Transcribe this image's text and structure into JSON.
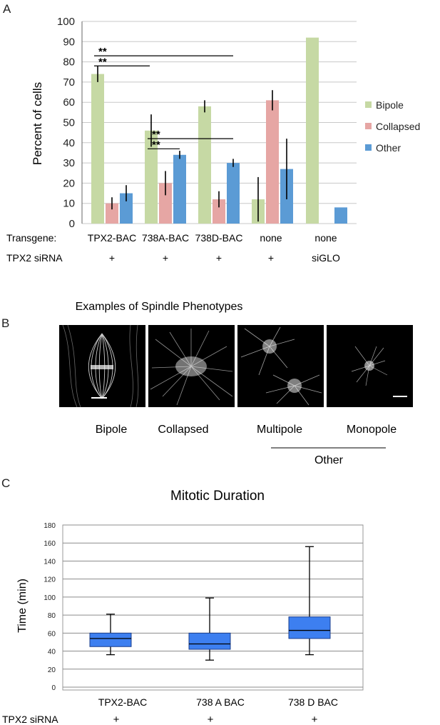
{
  "panels": {
    "a": "A",
    "b": "B",
    "c": "C"
  },
  "chart_data": [
    {
      "type": "bar",
      "title": "",
      "xlabel": "",
      "ylabel": "Percent of cells",
      "ylim": [
        0,
        100
      ],
      "yticks": [
        0,
        10,
        20,
        30,
        40,
        50,
        60,
        70,
        80,
        90,
        100
      ],
      "grid": true,
      "legend_position": "right",
      "categories": [
        "TPX2-BAC",
        "738A-BAC",
        "738D-BAC",
        "none",
        "none"
      ],
      "row_labels": {
        "transgene": "Transgene:",
        "sirna": "TPX2 siRNA"
      },
      "sirna": [
        "+",
        "+",
        "+",
        "+",
        "siGLO"
      ],
      "series": [
        {
          "name": "Bipole",
          "color": "#c6d9a4",
          "values": [
            74,
            46,
            58,
            12,
            92
          ],
          "err": [
            4,
            8,
            3,
            11,
            0
          ]
        },
        {
          "name": "Collapsed",
          "color": "#e6a6a4",
          "values": [
            10,
            20,
            12,
            61,
            null
          ],
          "err": [
            3,
            6,
            4,
            5,
            0
          ]
        },
        {
          "name": "Other",
          "color": "#5b9bd5",
          "values": [
            15,
            34,
            30,
            27,
            8
          ],
          "err": [
            4,
            2,
            2,
            15,
            0
          ]
        }
      ],
      "significance": [
        {
          "label": "**",
          "from_group": 0,
          "to_group": 3,
          "y": 83
        },
        {
          "label": "**",
          "from_group": 0,
          "to_group": 1,
          "y": 78
        },
        {
          "label": "**",
          "from_group": 1,
          "to_group": 3,
          "y": 42
        },
        {
          "label": "**",
          "from_group": 1,
          "to_group": 2,
          "y": 37
        }
      ]
    },
    {
      "type": "box",
      "title": "Mitotic Duration",
      "xlabel": "",
      "ylabel": "Time (min)",
      "ylim": [
        0,
        180
      ],
      "yticks": [
        0,
        20,
        40,
        60,
        80,
        100,
        120,
        140,
        160,
        180
      ],
      "grid": true,
      "color": "#3d7ff0",
      "categories": [
        "TPX2-BAC",
        "738 A BAC",
        "738 D  BAC"
      ],
      "row_label": "TPX2 siRNA",
      "sirna": [
        "+",
        "+",
        "+"
      ],
      "boxes": [
        {
          "min": 36,
          "q1": 45,
          "median": 54,
          "q3": 60,
          "max": 81
        },
        {
          "min": 30,
          "q1": 42,
          "median": 48,
          "q3": 60,
          "max": 99
        },
        {
          "min": 36,
          "q1": 54,
          "median": 63,
          "q3": 78,
          "max": 156
        }
      ]
    }
  ],
  "phenotypes": {
    "title": "Examples of Spindle Phenotypes",
    "labels": [
      "Bipole",
      "Collapsed",
      "Multipole",
      "Monopole"
    ],
    "group_label": "Other"
  }
}
